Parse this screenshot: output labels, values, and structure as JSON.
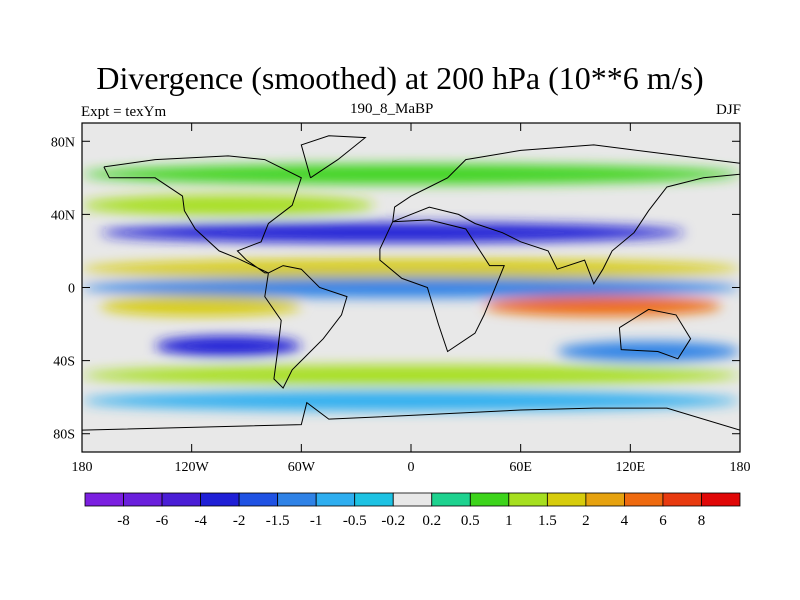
{
  "chart_data": {
    "type": "heatmap",
    "title": "Divergence (smoothed) at 200 hPa (10**6 m/s)",
    "subtitle_left": "Expt = texYm",
    "subtitle_center": "190_8_MaBP",
    "subtitle_right": "DJF",
    "x_ticks": [
      {
        "value": -180,
        "label": "180"
      },
      {
        "value": -120,
        "label": "120W"
      },
      {
        "value": -60,
        "label": "60W"
      },
      {
        "value": 0,
        "label": "0"
      },
      {
        "value": 60,
        "label": "60E"
      },
      {
        "value": 120,
        "label": "120E"
      },
      {
        "value": 180,
        "label": "180"
      }
    ],
    "y_ticks": [
      {
        "value": 80,
        "label": "80N"
      },
      {
        "value": 40,
        "label": "40N"
      },
      {
        "value": 0,
        "label": "0"
      },
      {
        "value": -40,
        "label": "40S"
      },
      {
        "value": -80,
        "label": "80S"
      }
    ],
    "xlim": [
      -180,
      180
    ],
    "ylim": [
      -90,
      90
    ],
    "levels": [
      "-8",
      "-6",
      "-4",
      "-2",
      "-1.5",
      "-1",
      "-0.5",
      "-0.2",
      "0.2",
      "0.5",
      "1",
      "1.5",
      "2",
      "4",
      "6",
      "8"
    ],
    "colors": [
      "#7b1fe0",
      "#6a1fdc",
      "#4a1ed6",
      "#1f1fd6",
      "#1f52e3",
      "#2f82e6",
      "#2eaef0",
      "#1dc2e3",
      "#e8e8e8",
      "#1ed28f",
      "#3dd41b",
      "#a6df1f",
      "#d7cc0c",
      "#e6a20f",
      "#ee6a0f",
      "#e83a0f",
      "#e00707"
    ],
    "field_description": "Zonal bands of divergence: strong convergence (blue) near 30N and 30S over Pacific and Atlantic, divergence (orange) along the equator over Africa/Indian Ocean and western Pacific.",
    "bands": [
      {
        "lat": 62,
        "lon_from": -180,
        "lon_to": 180,
        "value": 0.8
      },
      {
        "lat": 45,
        "lon_from": -180,
        "lon_to": -20,
        "value": 1.2
      },
      {
        "lat": 30,
        "lon_from": -170,
        "lon_to": 150,
        "value": -2.5
      },
      {
        "lat": 10,
        "lon_from": -180,
        "lon_to": 180,
        "value": 1.5
      },
      {
        "lat": 0,
        "lon_from": -180,
        "lon_to": 180,
        "value": -1.5
      },
      {
        "lat": -10,
        "lon_from": 40,
        "lon_to": 170,
        "value": 4
      },
      {
        "lat": -10,
        "lon_from": -170,
        "lon_to": -60,
        "value": 1.5
      },
      {
        "lat": -32,
        "lon_from": -140,
        "lon_to": -60,
        "value": -4
      },
      {
        "lat": -35,
        "lon_from": 80,
        "lon_to": 180,
        "value": -1.2
      },
      {
        "lat": -48,
        "lon_from": -180,
        "lon_to": 180,
        "value": 1
      },
      {
        "lat": -62,
        "lon_from": -180,
        "lon_to": 180,
        "value": -0.7
      }
    ]
  }
}
